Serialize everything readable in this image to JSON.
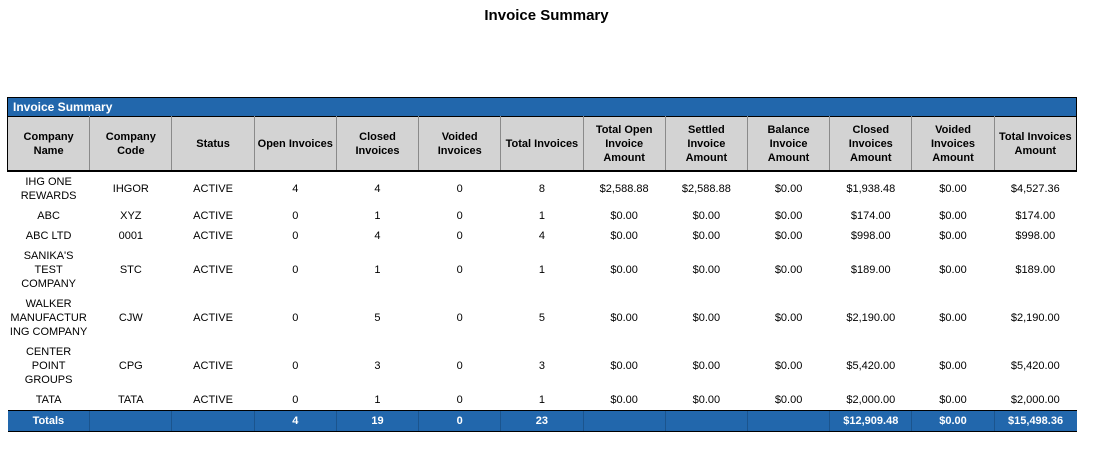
{
  "page_title": "Invoice Summary",
  "colors": {
    "accent_blue": "#2267AC",
    "header_gray": "#D3D3D3",
    "totals_text": "#FFFFFF"
  },
  "table": {
    "title": "Invoice Summary",
    "columns": [
      "Company Name",
      "Company Code",
      "Status",
      "Open Invoices",
      "Closed Invoices",
      "Voided Invoices",
      "Total Invoices",
      "Total Open Invoice Amount",
      "Settled Invoice Amount",
      "Balance Invoice Amount",
      "Closed Invoices Amount",
      "Voided Invoices Amount",
      "Total Invoices Amount"
    ],
    "rows": [
      [
        "IHG ONE REWARDS",
        "IHGOR",
        "ACTIVE",
        "4",
        "4",
        "0",
        "8",
        "$2,588.88",
        "$2,588.88",
        "$0.00",
        "$1,938.48",
        "$0.00",
        "$4,527.36"
      ],
      [
        "ABC",
        "XYZ",
        "ACTIVE",
        "0",
        "1",
        "0",
        "1",
        "$0.00",
        "$0.00",
        "$0.00",
        "$174.00",
        "$0.00",
        "$174.00"
      ],
      [
        "ABC LTD",
        "0001",
        "ACTIVE",
        "0",
        "4",
        "0",
        "4",
        "$0.00",
        "$0.00",
        "$0.00",
        "$998.00",
        "$0.00",
        "$998.00"
      ],
      [
        "SANIKA'S TEST COMPANY",
        "STC",
        "ACTIVE",
        "0",
        "1",
        "0",
        "1",
        "$0.00",
        "$0.00",
        "$0.00",
        "$189.00",
        "$0.00",
        "$189.00"
      ],
      [
        "WALKER MANUFACTURING COMPANY",
        "CJW",
        "ACTIVE",
        "0",
        "5",
        "0",
        "5",
        "$0.00",
        "$0.00",
        "$0.00",
        "$2,190.00",
        "$0.00",
        "$2,190.00"
      ],
      [
        "CENTER POINT GROUPS",
        "CPG",
        "ACTIVE",
        "0",
        "3",
        "0",
        "3",
        "$0.00",
        "$0.00",
        "$0.00",
        "$5,420.00",
        "$0.00",
        "$5,420.00"
      ],
      [
        "TATA",
        "TATA",
        "ACTIVE",
        "0",
        "1",
        "0",
        "1",
        "$0.00",
        "$0.00",
        "$0.00",
        "$2,000.00",
        "$0.00",
        "$2,000.00"
      ]
    ],
    "totals": [
      "Totals",
      "",
      "",
      "4",
      "19",
      "0",
      "23",
      "",
      "",
      "",
      "$12,909.48",
      "$0.00",
      "$15,498.36"
    ]
  }
}
